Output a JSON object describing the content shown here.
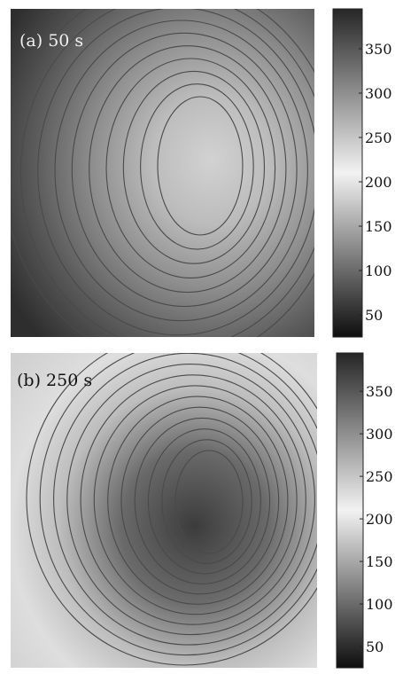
{
  "chart_data": [
    {
      "type": "heatmap",
      "title": "(a) 50 s",
      "colormap": "gray",
      "colorbar": {
        "ticks": [
          50,
          100,
          150,
          200,
          250,
          300,
          350
        ]
      },
      "contours": 10,
      "contour_color": "#4a4a4a",
      "background_shade": "#2e2e2e",
      "peak_shade": "#d2d2d2"
    },
    {
      "type": "heatmap",
      "title": "(b) 250 s",
      "colormap": "gray",
      "colorbar": {
        "ticks": [
          50,
          100,
          150,
          200,
          250,
          300,
          350
        ]
      },
      "contours": 12,
      "contour_color": "#4a4a4a",
      "background_shade": "#cfcfcf",
      "peak_shade": "#3c3c3c"
    }
  ]
}
